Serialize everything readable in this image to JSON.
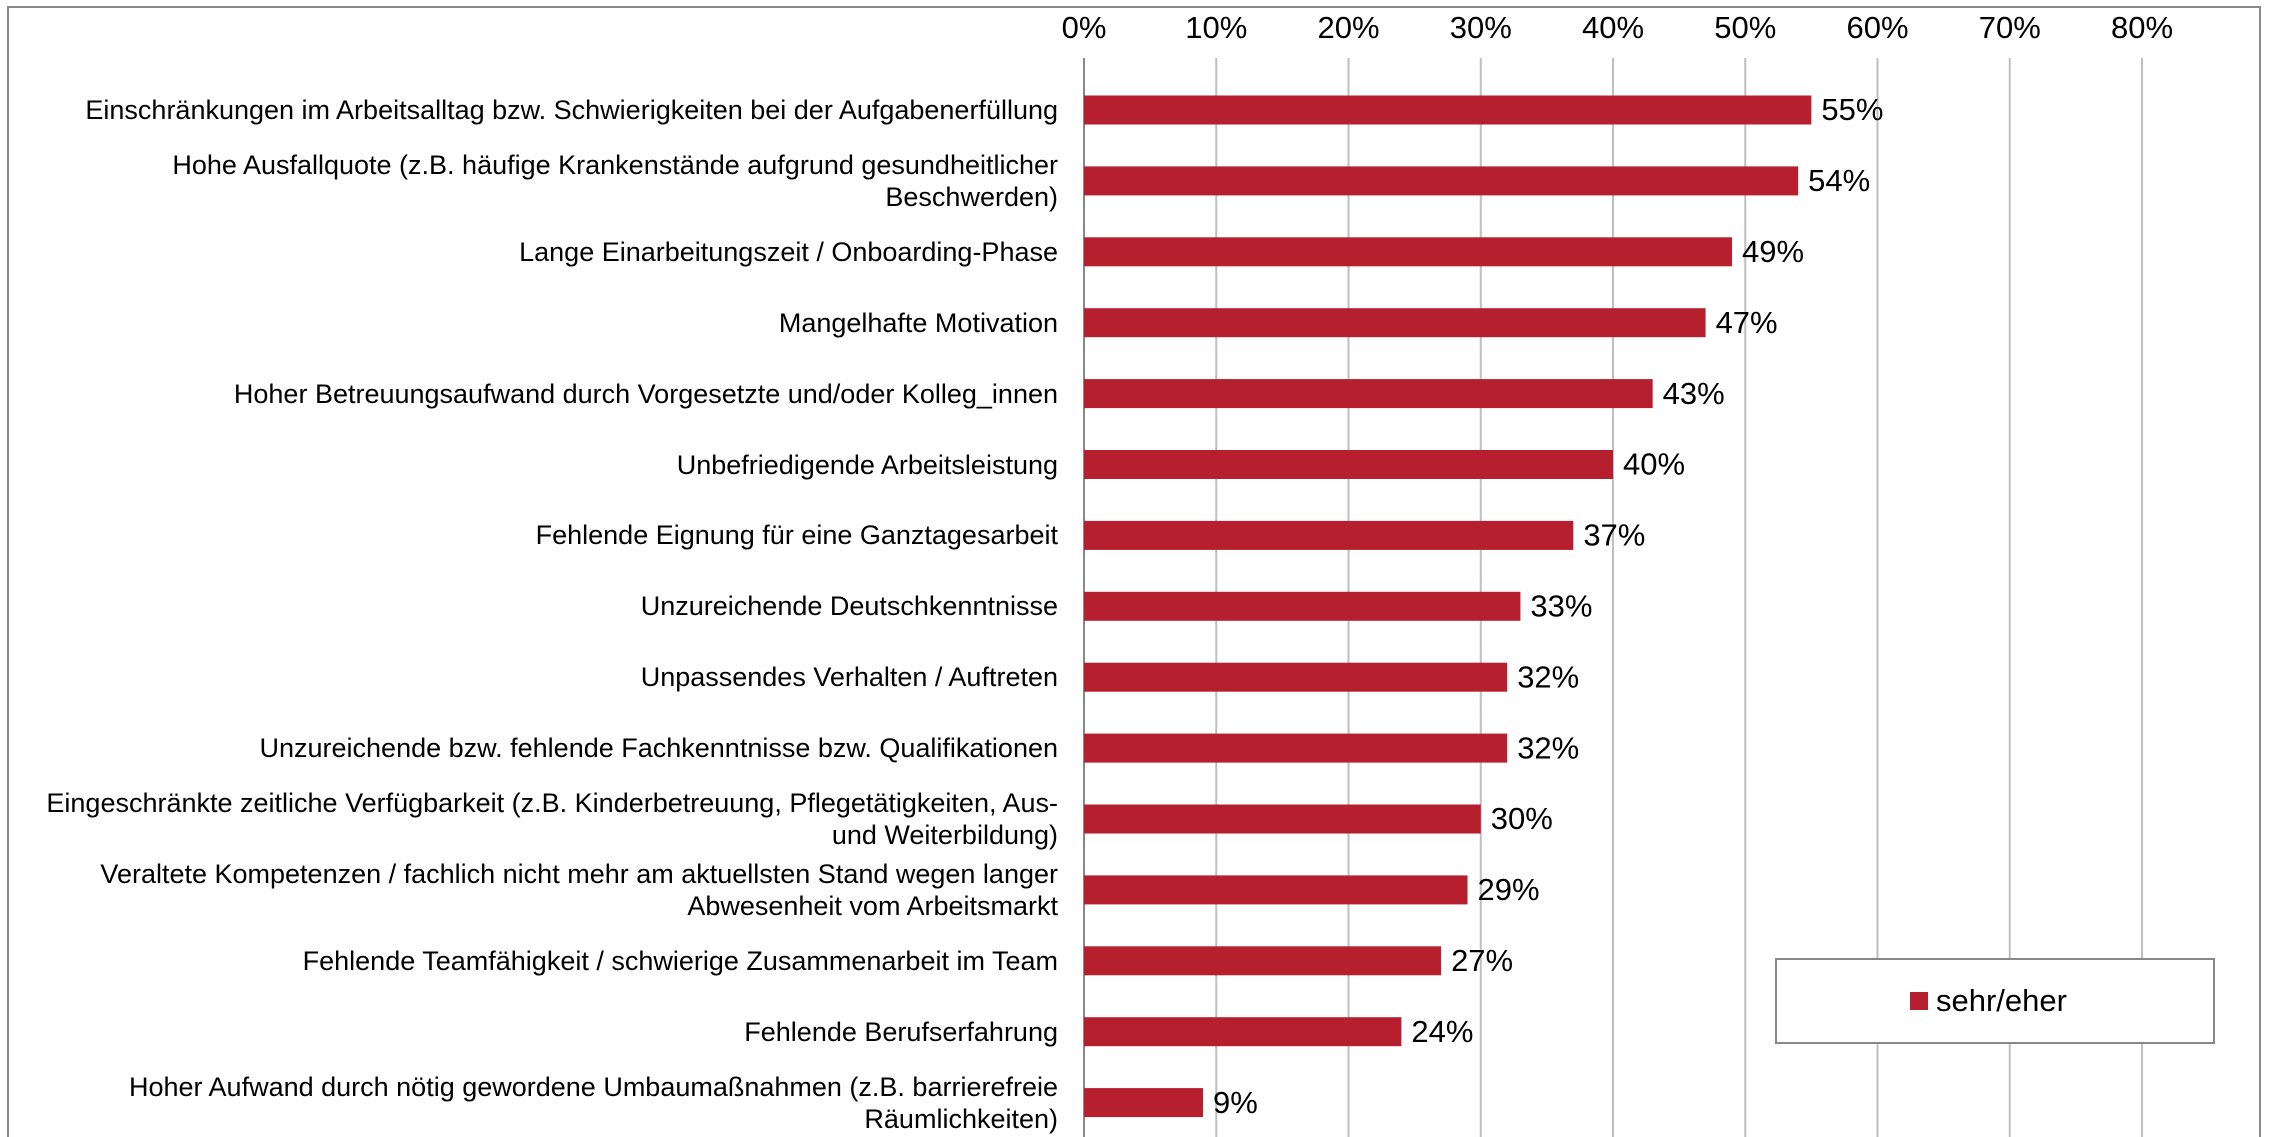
{
  "chart_data": {
    "type": "bar",
    "orientation": "horizontal",
    "categories": [
      "Einschränkungen im Arbeitsalltag bzw. Schwierigkeiten bei der Aufgabenerfüllung",
      "Hohe Ausfallquote (z.B. häufige Krankenstände aufgrund gesundheitlicher Beschwerden)",
      "Lange Einarbeitungszeit / Onboarding-Phase",
      "Mangelhafte Motivation",
      "Hoher Betreuungsaufwand durch Vorgesetzte und/oder Kolleg_innen",
      "Unbefriedigende Arbeitsleistung",
      "Fehlende Eignung für eine Ganztagesarbeit",
      "Unzureichende Deutschkenntnisse",
      "Unpassendes Verhalten / Auftreten",
      "Unzureichende bzw. fehlende Fachkenntnisse bzw. Qualifikationen",
      "Eingeschränkte zeitliche Verfügbarkeit (z.B. Kinderbetreuung, Pflegetätigkeiten, Aus- und Weiterbildung)",
      "Veraltete Kompetenzen / fachlich nicht mehr am aktuellsten Stand wegen langer Abwesenheit vom Arbeitsmarkt",
      "Fehlende Teamfähigkeit / schwierige Zusammenarbeit im Team",
      "Fehlende Berufserfahrung",
      "Hoher Aufwand durch nötig gewordene Umbaumaßnahmen (z.B. barrierefreie Räumlichkeiten)"
    ],
    "series": [
      {
        "name": "sehr/eher",
        "color": "#b51f2e",
        "values": [
          55,
          54,
          49,
          47,
          43,
          40,
          37,
          33,
          32,
          32,
          30,
          29,
          27,
          24,
          9
        ],
        "value_labels": [
          "55%",
          "54%",
          "49%",
          "47%",
          "43%",
          "40%",
          "37%",
          "33%",
          "32%",
          "32%",
          "30%",
          "29%",
          "27%",
          "24%",
          "9%"
        ]
      }
    ],
    "xlim": [
      0,
      80
    ],
    "xticks": [
      {
        "value": 0,
        "label": "0%"
      },
      {
        "value": 10,
        "label": "10%"
      },
      {
        "value": 20,
        "label": "20%"
      },
      {
        "value": 30,
        "label": "30%"
      },
      {
        "value": 40,
        "label": "40%"
      },
      {
        "value": 50,
        "label": "50%"
      },
      {
        "value": 60,
        "label": "60%"
      },
      {
        "value": 70,
        "label": "70%"
      },
      {
        "value": 80,
        "label": "80%"
      }
    ],
    "grid": true,
    "legend": "lower right"
  }
}
